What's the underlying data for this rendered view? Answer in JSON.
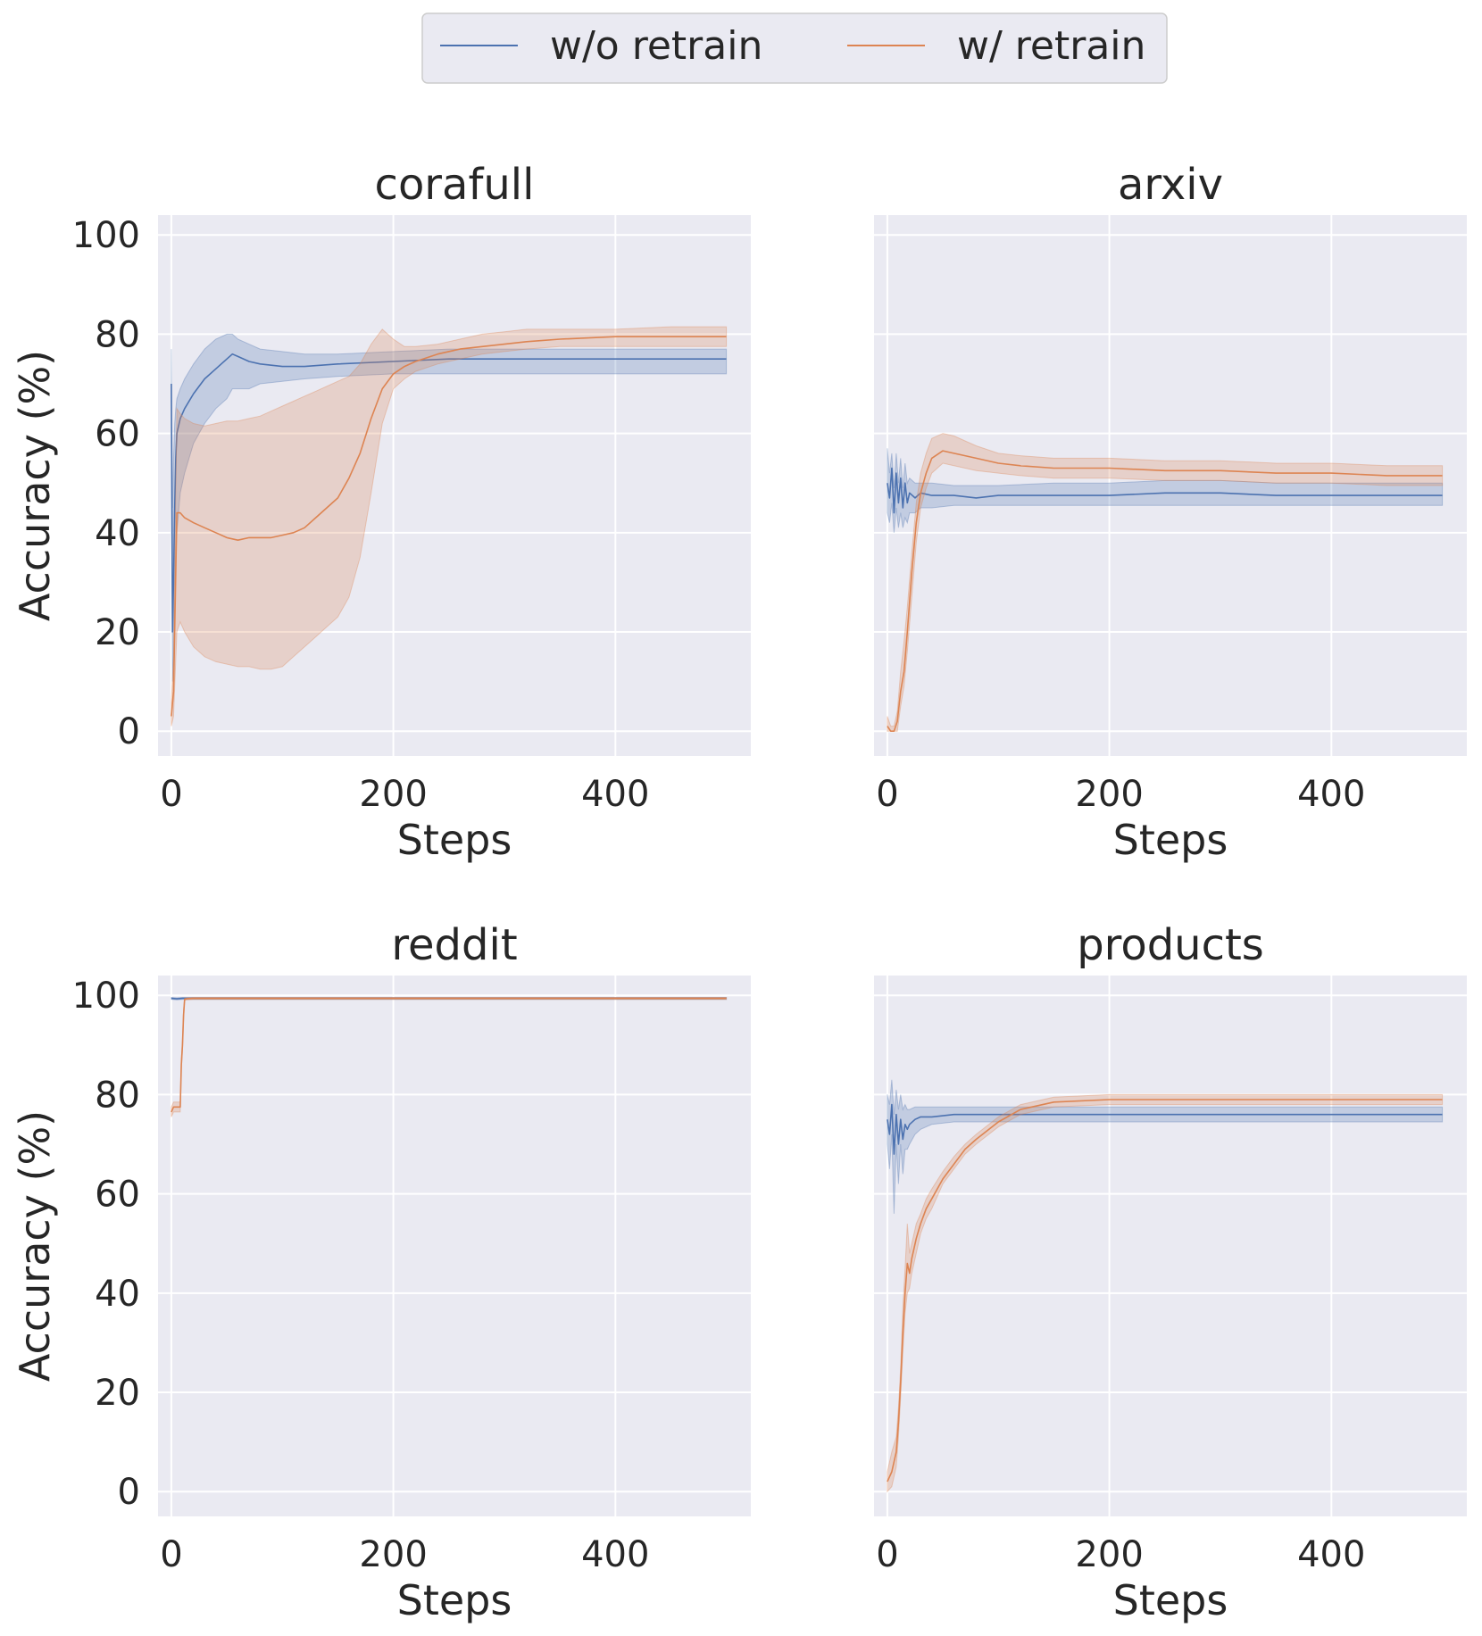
{
  "legend": {
    "placement": "top-center",
    "entries": [
      {
        "label": "w/o retrain",
        "color": "#4c72b0"
      },
      {
        "label": "w/ retrain",
        "color": "#dd8452"
      }
    ]
  },
  "colors": {
    "plot_bg": "#eaeaf2",
    "grid": "#ffffff",
    "series1": "#4c72b0",
    "series2": "#dd8452",
    "legend_border": "#cccccc"
  },
  "chart_data": [
    {
      "type": "line",
      "title": "corafull",
      "xlabel": "Steps",
      "ylabel": "Accuracy (%)",
      "xlim": [
        -12,
        522
      ],
      "ylim": [
        -5,
        104
      ],
      "xticks": [
        0,
        200,
        400
      ],
      "yticks": [
        0,
        20,
        40,
        60,
        80,
        100
      ],
      "grid": true,
      "series": [
        {
          "name": "w/o retrain",
          "band_opacity": 0.25,
          "x": [
            0,
            1,
            2,
            3,
            4,
            5,
            8,
            12,
            20,
            30,
            40,
            50,
            55,
            60,
            70,
            80,
            100,
            120,
            150,
            200,
            250,
            300,
            350,
            400,
            450,
            500
          ],
          "y": [
            70,
            20,
            30,
            45,
            55,
            60,
            63,
            65,
            68,
            71,
            73,
            75,
            76,
            75.5,
            74.5,
            74,
            73.5,
            73.5,
            74,
            74.5,
            75,
            75,
            75,
            75,
            75,
            75
          ],
          "lower": [
            60,
            10,
            15,
            25,
            35,
            40,
            48,
            52,
            58,
            62,
            65,
            67,
            69,
            69,
            69,
            70,
            70.5,
            71,
            71.5,
            72,
            72,
            72,
            72,
            72,
            72,
            72
          ],
          "upper": [
            77,
            45,
            55,
            62,
            65,
            67,
            69,
            71,
            74,
            77,
            79,
            80,
            80,
            79,
            78,
            77,
            76.5,
            76,
            76,
            76.5,
            77,
            77,
            77,
            77,
            77,
            77
          ]
        },
        {
          "name": "w/ retrain",
          "band_opacity": 0.25,
          "x": [
            0,
            2,
            5,
            8,
            12,
            20,
            30,
            40,
            50,
            60,
            70,
            80,
            90,
            100,
            110,
            120,
            130,
            140,
            150,
            160,
            170,
            180,
            190,
            200,
            210,
            220,
            240,
            260,
            280,
            300,
            320,
            350,
            400,
            450,
            500
          ],
          "y": [
            3,
            8,
            44,
            44,
            43,
            42,
            41,
            40,
            39,
            38.5,
            39,
            39,
            39,
            39.5,
            40,
            41,
            43,
            45,
            47,
            51,
            56,
            63,
            69,
            72,
            73.5,
            74.5,
            76,
            77,
            77.5,
            78,
            78.5,
            79,
            79.5,
            79.5,
            79.5
          ],
          "lower": [
            1,
            3,
            20,
            22,
            20,
            17,
            15,
            14,
            13.5,
            13,
            13,
            12.5,
            12.5,
            13,
            15,
            17,
            19,
            21,
            23,
            27,
            35,
            48,
            62,
            69,
            71,
            72.5,
            74,
            75,
            76,
            76.5,
            77,
            77.5,
            77.5,
            77.5,
            77.5
          ],
          "upper": [
            6,
            15,
            65,
            64,
            63,
            62,
            61.5,
            62,
            62.5,
            62.5,
            63,
            63.5,
            64.5,
            65.5,
            66.5,
            67.5,
            68.5,
            69.5,
            70.5,
            71.5,
            74,
            78,
            81,
            79,
            77.5,
            77.5,
            78,
            79,
            80,
            80.5,
            81,
            81,
            81,
            81.5,
            81.5
          ]
        }
      ]
    },
    {
      "type": "line",
      "title": "arxiv",
      "xlabel": "Steps",
      "ylabel": "",
      "xlim": [
        -12,
        522
      ],
      "ylim": [
        -5,
        104
      ],
      "xticks": [
        0,
        200,
        400
      ],
      "yticks": [
        0,
        20,
        40,
        60,
        80,
        100
      ],
      "grid": true,
      "series": [
        {
          "name": "w/o retrain",
          "band_opacity": 0.25,
          "x": [
            0,
            2,
            4,
            6,
            8,
            10,
            12,
            14,
            16,
            18,
            20,
            25,
            30,
            40,
            60,
            80,
            100,
            150,
            200,
            250,
            300,
            350,
            400,
            450,
            500
          ],
          "y": [
            50,
            47,
            53,
            44,
            52,
            46,
            51,
            45,
            50,
            46,
            48,
            47,
            48,
            47.5,
            47.5,
            47,
            47.5,
            47.5,
            47.5,
            48,
            48,
            47.5,
            47.5,
            47.5,
            47.5
          ],
          "lower": [
            44,
            42,
            46,
            40,
            45,
            41,
            44,
            41,
            43,
            42,
            44,
            44,
            45,
            45,
            45.5,
            45.5,
            45.5,
            45.5,
            45.5,
            45.5,
            45.5,
            45.5,
            45.5,
            45.5,
            45.5
          ],
          "upper": [
            57,
            52,
            56,
            49,
            56,
            50,
            55,
            49,
            54,
            50,
            51,
            50,
            50,
            50,
            49.5,
            49.5,
            49.5,
            50,
            50,
            50.5,
            50.5,
            50,
            50,
            50,
            50
          ]
        },
        {
          "name": "w/ retrain",
          "band_opacity": 0.25,
          "x": [
            0,
            3,
            6,
            9,
            12,
            15,
            18,
            22,
            26,
            30,
            35,
            40,
            50,
            60,
            70,
            80,
            100,
            120,
            150,
            200,
            250,
            300,
            350,
            400,
            450,
            500
          ],
          "y": [
            1,
            0,
            0,
            2,
            8,
            12,
            20,
            32,
            42,
            48,
            52,
            55,
            56.5,
            56,
            55.5,
            55,
            54,
            53.5,
            53,
            53,
            52.5,
            52.5,
            52,
            52,
            51.5,
            51.5
          ],
          "lower": [
            0,
            0,
            0,
            0,
            5,
            9,
            16,
            27,
            38,
            45,
            49,
            52,
            54,
            53.5,
            53,
            52.5,
            52,
            51.5,
            51,
            51,
            50.5,
            50.5,
            50,
            50,
            49.5,
            49.5
          ],
          "upper": [
            3,
            1,
            1,
            4,
            12,
            18,
            25,
            36,
            46,
            52,
            56,
            59,
            60,
            59.5,
            58.5,
            57.5,
            56,
            55.5,
            55,
            55,
            54.5,
            54.5,
            54,
            54,
            53.5,
            53.5
          ]
        }
      ]
    },
    {
      "type": "line",
      "title": "reddit",
      "xlabel": "Steps",
      "ylabel": "Accuracy (%)",
      "xlim": [
        -12,
        522
      ],
      "ylim": [
        -5,
        104
      ],
      "xticks": [
        0,
        200,
        400
      ],
      "yticks": [
        0,
        20,
        40,
        60,
        80,
        100
      ],
      "grid": true,
      "series": [
        {
          "name": "w/o retrain",
          "band_opacity": 0.25,
          "x": [
            0,
            5,
            10,
            50,
            100,
            200,
            300,
            400,
            500
          ],
          "y": [
            99.4,
            99.3,
            99.4,
            99.4,
            99.4,
            99.4,
            99.4,
            99.4,
            99.4
          ],
          "lower": [
            99.2,
            99.1,
            99.2,
            99.2,
            99.2,
            99.2,
            99.2,
            99.2,
            99.2
          ],
          "upper": [
            99.6,
            99.5,
            99.6,
            99.6,
            99.6,
            99.6,
            99.6,
            99.6,
            99.6
          ]
        },
        {
          "name": "w/ retrain",
          "band_opacity": 0.25,
          "x": [
            0,
            1,
            2,
            3,
            6,
            8,
            9,
            10,
            11,
            12,
            14,
            20,
            50,
            100,
            200,
            300,
            400,
            500
          ],
          "y": [
            76.5,
            77,
            77.5,
            77.5,
            77.5,
            77.5,
            86,
            90,
            96,
            99.2,
            99.3,
            99.4,
            99.4,
            99.4,
            99.4,
            99.4,
            99.4,
            99.4
          ],
          "lower": [
            75.5,
            76,
            76.5,
            76.5,
            76.5,
            76.5,
            85,
            89,
            95,
            99,
            99.1,
            99.2,
            99.2,
            99.2,
            99.2,
            99.2,
            99.2,
            99.2
          ],
          "upper": [
            77.5,
            78,
            78.5,
            78.5,
            78.5,
            78.5,
            87,
            91,
            97,
            99.4,
            99.5,
            99.6,
            99.6,
            99.6,
            99.6,
            99.6,
            99.6,
            99.6
          ]
        }
      ]
    },
    {
      "type": "line",
      "title": "products",
      "xlabel": "Steps",
      "ylabel": "",
      "xlim": [
        -12,
        522
      ],
      "ylim": [
        -5,
        104
      ],
      "xticks": [
        0,
        200,
        400
      ],
      "yticks": [
        0,
        20,
        40,
        60,
        80,
        100
      ],
      "grid": true,
      "series": [
        {
          "name": "w/o retrain",
          "band_opacity": 0.25,
          "x": [
            0,
            2,
            4,
            6,
            8,
            10,
            12,
            14,
            16,
            18,
            20,
            25,
            30,
            40,
            60,
            80,
            100,
            150,
            200,
            300,
            400,
            500
          ],
          "y": [
            75,
            72,
            78,
            68,
            76,
            70,
            75,
            71,
            74,
            73,
            74,
            75,
            75.5,
            75.5,
            76,
            76,
            76,
            76,
            76,
            76,
            76,
            76
          ],
          "lower": [
            70,
            65,
            72,
            56,
            70,
            62,
            70,
            64,
            69,
            69,
            70,
            72,
            73,
            74,
            74.5,
            74.5,
            74.5,
            74.5,
            74.5,
            74.5,
            74.5,
            74.5
          ],
          "upper": [
            80,
            78,
            83,
            76,
            81,
            77,
            80,
            77,
            78,
            77,
            77,
            77.5,
            77.5,
            77.5,
            77.5,
            77.5,
            77.5,
            77.5,
            77.5,
            77.5,
            77.5,
            77.5
          ]
        },
        {
          "name": "w/ retrain",
          "band_opacity": 0.25,
          "x": [
            0,
            4,
            8,
            10,
            12,
            14,
            16,
            18,
            20,
            22,
            24,
            26,
            30,
            35,
            40,
            50,
            60,
            70,
            80,
            100,
            120,
            150,
            200,
            250,
            300,
            400,
            500
          ],
          "y": [
            2,
            4,
            8,
            14,
            22,
            32,
            40,
            46,
            44,
            47,
            49,
            51,
            54,
            57,
            59,
            63,
            66,
            69,
            71,
            74.5,
            77,
            78.5,
            79,
            79,
            79,
            79,
            79
          ],
          "lower": [
            0,
            1,
            5,
            11,
            19,
            28,
            36,
            40,
            41,
            44,
            46,
            48,
            52,
            55,
            57,
            62,
            65,
            68,
            70,
            73.5,
            76,
            77.5,
            78,
            78,
            78,
            78,
            78
          ],
          "upper": [
            4,
            8,
            11,
            17,
            25,
            37,
            45,
            54,
            48,
            50,
            52,
            54,
            56,
            59,
            61,
            64.5,
            67.5,
            70,
            72,
            75.5,
            78,
            79.5,
            80,
            80,
            80,
            80,
            80
          ]
        }
      ]
    }
  ]
}
